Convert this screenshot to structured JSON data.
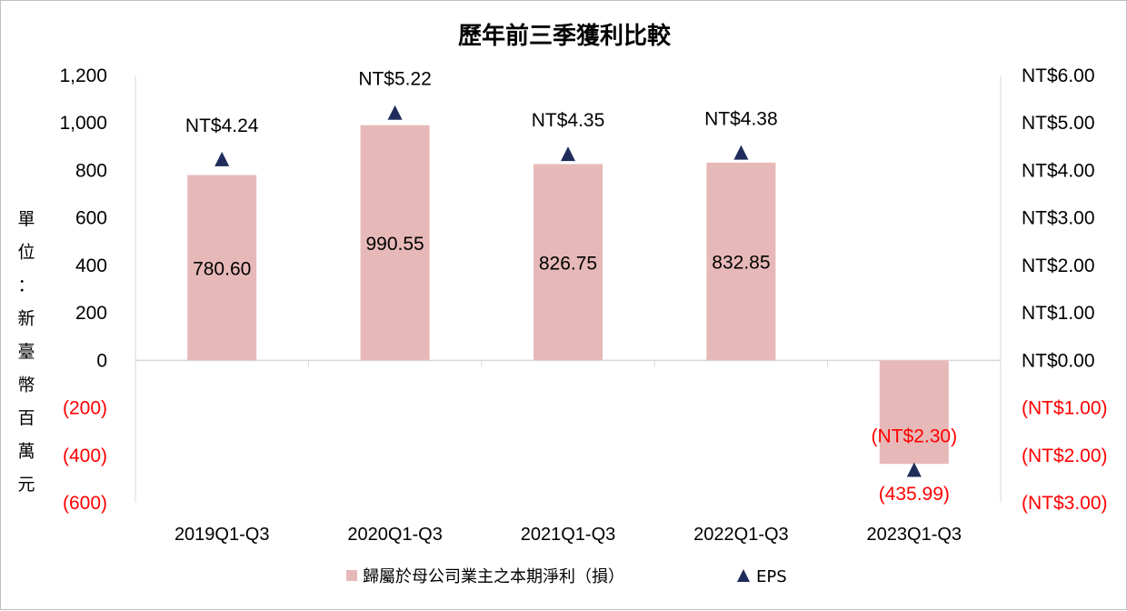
{
  "chart_data": {
    "type": "bar",
    "title": "歷年前三季獲利比較",
    "ylabel": "單位：新臺幣百萬元",
    "categories": [
      "2019Q1-Q3",
      "2020Q1-Q3",
      "2021Q1-Q3",
      "2022Q1-Q3",
      "2023Q1-Q3"
    ],
    "ylim": [
      -600,
      1200
    ],
    "y2lim": [
      -3,
      6
    ],
    "y_ticks": [
      "(600)",
      "(400)",
      "(200)",
      "0",
      "200",
      "400",
      "600",
      "800",
      "1,000",
      "1,200"
    ],
    "y2_ticks": [
      "(NT$3.00)",
      "(NT$2.00)",
      "(NT$1.00)",
      "NT$0.00",
      "NT$1.00",
      "NT$2.00",
      "NT$3.00",
      "NT$4.00",
      "NT$5.00",
      "NT$6.00"
    ],
    "series": [
      {
        "name": "歸屬於母公司業主之本期淨利（損）",
        "kind": "bar",
        "axis": "left",
        "color": "#e6b9b8",
        "values": [
          780.6,
          990.55,
          826.75,
          832.85,
          -435.99
        ],
        "labels": [
          "780.60",
          "990.55",
          "826.75",
          "832.85",
          "(435.99)"
        ]
      },
      {
        "name": "EPS",
        "kind": "marker",
        "marker": "triangle",
        "axis": "right",
        "color": "#1f2d5c",
        "values": [
          4.24,
          5.22,
          4.35,
          4.38,
          -2.3
        ],
        "labels": [
          "NT$4.24",
          "NT$5.22",
          "NT$4.35",
          "NT$4.38",
          "(NT$2.30)"
        ]
      }
    ],
    "negative_color": "#ff0000",
    "grid": false,
    "legend_position": "bottom"
  }
}
